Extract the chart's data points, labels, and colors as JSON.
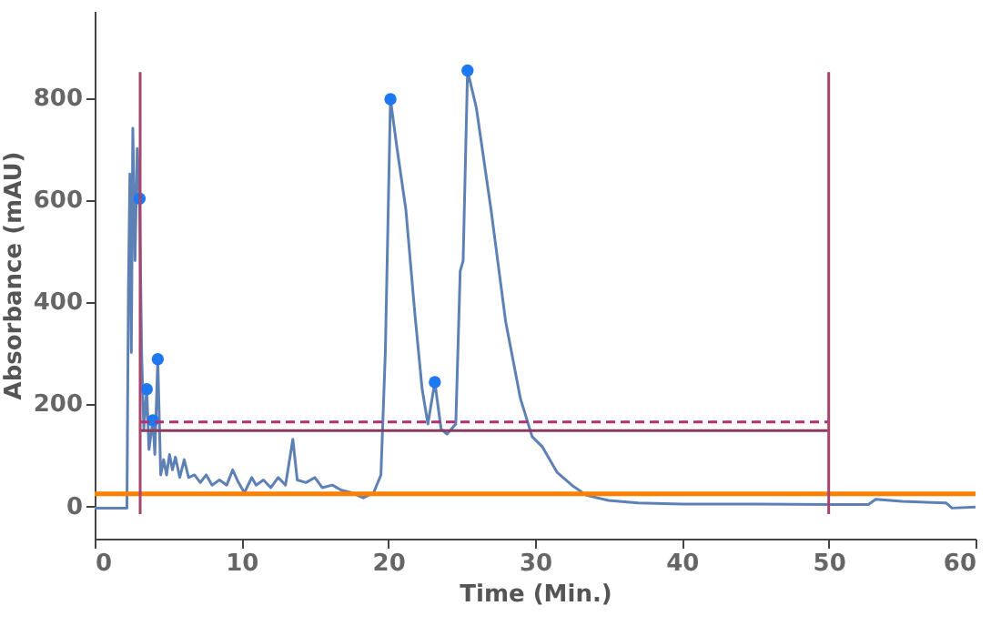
{
  "chart_data": {
    "type": "line",
    "xlabel": "Time  (Min.)",
    "ylabel": "Absorbance  (mAU)",
    "xlim": [
      0,
      60
    ],
    "ylim": [
      -65,
      970
    ],
    "xticks": [
      0,
      10,
      20,
      30,
      40,
      50,
      60
    ],
    "yticks": [
      0,
      200,
      400,
      600,
      800
    ],
    "grid": false,
    "line_style": "solid",
    "series": [
      {
        "color": "#5e81b5",
        "x": [
          0,
          2.2,
          2.3,
          2.4,
          2.5,
          2.6,
          2.75,
          2.9,
          3.06,
          3.2,
          3.35,
          3.55,
          3.7,
          3.97,
          4.1,
          4.3,
          4.5,
          4.7,
          4.9,
          5.1,
          5.3,
          5.5,
          5.8,
          6.1,
          6.4,
          6.8,
          7.2,
          7.6,
          8.0,
          8.5,
          9.0,
          9.4,
          9.8,
          10.2,
          10.7,
          11.0,
          11.5,
          12.0,
          12.5,
          13.0,
          13.5,
          13.8,
          14.4,
          15.0,
          15.5,
          16.2,
          16.8,
          17.5,
          18.3,
          19.0,
          19.5,
          19.8,
          20.15,
          20.6,
          21.2,
          21.8,
          22.3,
          22.7,
          23.17,
          23.6,
          24.0,
          24.6,
          24.9,
          25.1,
          25.4,
          26.0,
          27.0,
          28.0,
          29.0,
          29.8,
          30.5,
          31.5,
          32.5,
          33.5,
          35,
          37,
          40,
          45,
          50,
          52.7,
          53.2,
          55,
          58,
          58.4,
          60
        ],
        "values": [
          -5,
          -5,
          420,
          650,
          300,
          740,
          480,
          700,
          602,
          300,
          150,
          228,
          110,
          167,
          100,
          287,
          60,
          90,
          60,
          100,
          70,
          95,
          55,
          90,
          55,
          60,
          45,
          60,
          40,
          50,
          40,
          70,
          45,
          25,
          55,
          40,
          50,
          35,
          55,
          40,
          130,
          50,
          45,
          55,
          35,
          40,
          30,
          25,
          15,
          25,
          60,
          300,
          797,
          700,
          580,
          380,
          230,
          160,
          242,
          150,
          140,
          160,
          460,
          480,
          853,
          780,
          580,
          360,
          210,
          135,
          115,
          65,
          40,
          20,
          10,
          5,
          3,
          3,
          2,
          2,
          12,
          8,
          5,
          -5,
          -3
        ]
      },
      {
        "type": "scatter",
        "marker": "circle",
        "color": "#1e78f0",
        "x": [
          3.06,
          3.55,
          3.97,
          4.3,
          20.15,
          23.17,
          25.4
        ],
        "values": [
          602,
          228,
          167,
          287,
          797,
          242,
          853
        ]
      },
      {
        "color": "#ff8000",
        "x": [
          0,
          60
        ],
        "values": [
          23,
          23
        ]
      },
      {
        "color": "#b03070",
        "line_style": "dashed",
        "x": [
          3.1,
          50
        ],
        "values": [
          164,
          164
        ]
      },
      {
        "color": "#8a3a5e",
        "x": [
          3.1,
          50
        ],
        "values": [
          147,
          147
        ]
      },
      {
        "color": "#a8456e",
        "x": [
          3.1,
          3.1
        ],
        "values": [
          -17,
          850
        ]
      },
      {
        "color": "#a8456e",
        "x": [
          50,
          50
        ],
        "values": [
          -17,
          850
        ]
      }
    ]
  }
}
